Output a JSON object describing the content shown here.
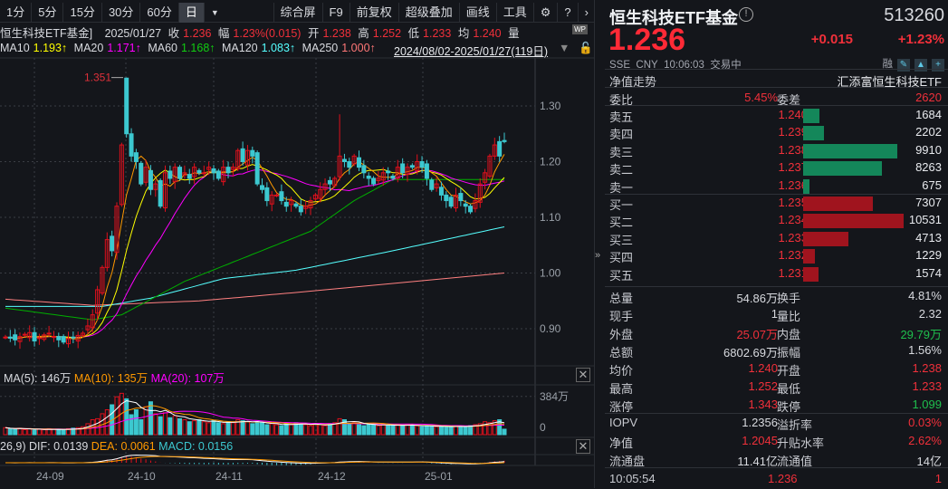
{
  "toolbar": {
    "periods": [
      "1分",
      "5分",
      "15分",
      "30分",
      "60分",
      "日"
    ],
    "active": "日",
    "right": [
      "综合屏",
      "F9",
      "前复权",
      "超级叠加",
      "画线",
      "工具"
    ]
  },
  "info": {
    "name": "恒生科技ETF基金]",
    "date": "2025/01/27",
    "close_label": "收",
    "close": "1.236",
    "chg_label": "幅",
    "chg": "1.23%(0.015)",
    "open_label": "开",
    "open": "1.238",
    "high_label": "高",
    "high": "1.252",
    "low_label": "低",
    "low": "1.233",
    "avg_label": "均",
    "avg": "1.240",
    "vol_label": "量",
    "wp": "WP"
  },
  "ma": {
    "ma10": "MA10",
    "ma10v": "1.193↑",
    "ma20": "MA20",
    "ma20v": "1.171↑",
    "ma60": "MA60",
    "ma60v": "1.168↑",
    "ma120": "MA120",
    "ma120v": "1.083↑",
    "ma250": "MA250",
    "ma250v": "1.000↑",
    "range": "2024/08/02-2025/01/27(119日)"
  },
  "colors": {
    "up": "#e0101c",
    "down": "#3cc8d0",
    "ma5": "#ffffff",
    "ma10": "#ffff00",
    "ma20": "#ff00ff",
    "ma60": "#00b000",
    "ma120": "#5ff",
    "ma250": "#ff8080",
    "orange": "#ff9900"
  },
  "chart_data": {
    "type": "candlestick",
    "price_ticks": [
      "1.30",
      "1.20",
      "1.10",
      "1.00",
      "0.90"
    ],
    "max_label": "1.351",
    "closes": [
      0.885,
      0.883,
      0.88,
      0.886,
      0.89,
      0.893,
      0.878,
      0.884,
      0.889,
      0.892,
      0.886,
      0.88,
      0.876,
      0.882,
      0.884,
      0.888,
      0.892,
      0.905,
      0.925,
      0.97,
      1.01,
      1.06,
      1.04,
      1.12,
      1.23,
      1.25,
      1.21,
      1.2,
      1.16,
      1.19,
      1.15,
      1.16,
      1.12,
      1.18,
      1.17,
      1.19,
      1.17,
      1.18,
      1.17,
      1.19,
      1.18,
      1.18,
      1.19,
      1.18,
      1.17,
      1.19,
      1.18,
      1.19,
      1.22,
      1.2,
      1.22,
      1.21,
      1.16,
      1.15,
      1.13,
      1.14,
      1.14,
      1.13,
      1.12,
      1.13,
      1.12,
      1.11,
      1.12,
      1.13,
      1.14,
      1.15,
      1.16,
      1.16,
      1.17,
      1.21,
      1.2,
      1.19,
      1.21,
      1.19,
      1.18,
      1.17,
      1.16,
      1.17,
      1.18,
      1.18,
      1.17,
      1.19,
      1.18,
      1.19,
      1.19,
      1.2,
      1.19,
      1.17,
      1.15,
      1.16,
      1.14,
      1.13,
      1.12,
      1.14,
      1.13,
      1.12,
      1.11,
      1.13,
      1.16,
      1.18,
      1.21,
      1.23,
      1.21,
      1.236
    ],
    "volumes": [
      70,
      60,
      55,
      65,
      50,
      60,
      45,
      55,
      50,
      60,
      55,
      50,
      45,
      60,
      65,
      70,
      80,
      110,
      150,
      160,
      210,
      250,
      300,
      380,
      415,
      360,
      200,
      250,
      150,
      280,
      330,
      210,
      180,
      220,
      170,
      190,
      160,
      150,
      130,
      140,
      150,
      130,
      120,
      140,
      120,
      110,
      130,
      120,
      150,
      140,
      130,
      110,
      130,
      120,
      100,
      110,
      100,
      90,
      110,
      100,
      120,
      110,
      100,
      90,
      110,
      100,
      90,
      110,
      120,
      160,
      150,
      110,
      120,
      100,
      90,
      110,
      100,
      90,
      100,
      90,
      100,
      95,
      90,
      100,
      95,
      90,
      80,
      85,
      90,
      80,
      85,
      75,
      80,
      90,
      85,
      80,
      90,
      100,
      110,
      130,
      120,
      140,
      150,
      55
    ],
    "ma60": [
      [
        0,
        0.937
      ],
      [
        18,
        0.916
      ],
      [
        24,
        0.925
      ],
      [
        37,
        0.985
      ],
      [
        50,
        1.03
      ],
      [
        63,
        1.075
      ],
      [
        72,
        1.13
      ],
      [
        80,
        1.168
      ],
      [
        103,
        1.168
      ]
    ],
    "ma120": [
      [
        0,
        0.94
      ],
      [
        20,
        0.94
      ],
      [
        30,
        0.955
      ],
      [
        45,
        0.99
      ],
      [
        60,
        1.005
      ],
      [
        80,
        1.04
      ],
      [
        103,
        1.083
      ]
    ],
    "ma250": [
      [
        0,
        0.953
      ],
      [
        18,
        0.942
      ],
      [
        40,
        0.95
      ],
      [
        60,
        0.965
      ],
      [
        103,
        1.0
      ]
    ],
    "date_ticks": [
      "24-09",
      "24-10",
      "24-11",
      "24-12",
      "25-01"
    ],
    "vol_tick_max": "384万",
    "vol_tick_zero": "0"
  },
  "vol": {
    "ma5": "MA(5): 146万",
    "ma10": "MA(10): 135万",
    "ma20": "MA(20): 107万"
  },
  "macd": {
    "params": "26,9)",
    "dif": "DIF: 0.0139",
    "dea": "DEA: 0.0061",
    "macd": "MACD: 0.0156"
  },
  "quote": {
    "name": "恒生科技ETF基金",
    "code": "513260",
    "price": "1.236",
    "change": "+0.015",
    "pct": "+1.23%",
    "exchange": "SSE",
    "currency": "CNY",
    "time": "10:06:03",
    "status": "交易中",
    "margin": "融",
    "nav_trend": "净值走势",
    "fund": "汇添富恒生科技ETF",
    "wb_label": "委比",
    "wb": "5.45%",
    "wc_label": "委差",
    "wc": "2620"
  },
  "asks": [
    {
      "label": "卖五",
      "price": "1.240",
      "qty": "1684",
      "v": 1684
    },
    {
      "label": "卖四",
      "price": "1.239",
      "qty": "2202",
      "v": 2202
    },
    {
      "label": "卖三",
      "price": "1.238",
      "qty": "9910",
      "v": 9910
    },
    {
      "label": "卖二",
      "price": "1.237",
      "qty": "8263",
      "v": 8263
    },
    {
      "label": "卖一",
      "price": "1.236",
      "qty": "675",
      "v": 675
    }
  ],
  "bids": [
    {
      "label": "买一",
      "price": "1.235",
      "qty": "7307",
      "v": 7307
    },
    {
      "label": "买二",
      "price": "1.234",
      "qty": "10531",
      "v": 10531
    },
    {
      "label": "买三",
      "price": "1.233",
      "qty": "4713",
      "v": 4713
    },
    {
      "label": "买四",
      "price": "1.232",
      "qty": "1229",
      "v": 1229
    },
    {
      "label": "买五",
      "price": "1.231",
      "qty": "1574",
      "v": 1574
    }
  ],
  "stats": [
    {
      "l1": "总量",
      "v1": "54.86万",
      "c1": "",
      "l2": "换手",
      "v2": "4.81%",
      "c2": ""
    },
    {
      "l1": "现手",
      "v1": "1",
      "c1": "",
      "l2": "量比",
      "v2": "2.32",
      "c2": ""
    },
    {
      "l1": "外盘",
      "v1": "25.07万",
      "c1": "red",
      "l2": "内盘",
      "v2": "29.79万",
      "c2": "green"
    },
    {
      "l1": "总额",
      "v1": "6802.69万",
      "c1": "",
      "l2": "振幅",
      "v2": "1.56%",
      "c2": ""
    },
    {
      "l1": "均价",
      "v1": "1.240",
      "c1": "red",
      "l2": "开盘",
      "v2": "1.238",
      "c2": "red"
    },
    {
      "l1": "最高",
      "v1": "1.252",
      "c1": "red",
      "l2": "最低",
      "v2": "1.233",
      "c2": "red"
    },
    {
      "l1": "涨停",
      "v1": "1.343",
      "c1": "red",
      "l2": "跌停",
      "v2": "1.099",
      "c2": "green"
    }
  ],
  "stats2": [
    {
      "l1": "IOPV",
      "v1": "1.2356",
      "c1": "",
      "l2": "溢折率",
      "v2": "0.03%",
      "c2": "red"
    },
    {
      "l1": "净值",
      "v1": "1.2045",
      "c1": "red",
      "l2": "升贴水率",
      "v2": "2.62%",
      "c2": "red"
    },
    {
      "l1": "流通盘",
      "v1": "11.41亿",
      "c1": "",
      "l2": "流通值",
      "v2": "14亿",
      "c2": ""
    }
  ],
  "tick": {
    "time": "10:05:54",
    "price": "1.236",
    "qty": "1"
  }
}
